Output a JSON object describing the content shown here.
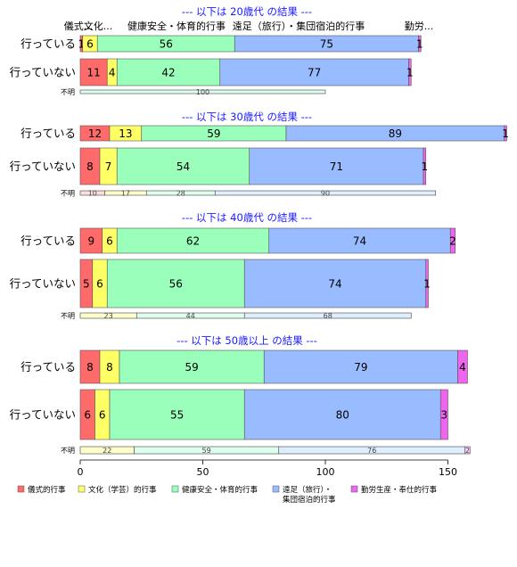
{
  "chart_data": {
    "type": "bar",
    "orientation": "horizontal",
    "stacked": true,
    "xlim": [
      0,
      160
    ],
    "xticks": [
      0,
      50,
      100,
      150
    ],
    "colors": [
      "#ff6b6b",
      "#ffff66",
      "#99ffbb",
      "#99bbff",
      "#ee66ee"
    ],
    "column_headers": [
      "儀式...",
      "文化...",
      "健康安全・体育的行事",
      "遠足（旅行）・集団宿泊的行事",
      "勤労..."
    ],
    "legend": [
      {
        "label": "儀式的行事",
        "color": "#ff6b6b"
      },
      {
        "label": "文化（学芸）的行事",
        "color": "#ffff66"
      },
      {
        "label": "健康安全・体育的行事",
        "color": "#99ffbb"
      },
      {
        "label": "遠足（旅行）・",
        "label2": "集団宿泊的行事",
        "color": "#99bbff"
      },
      {
        "label": "勤労生産・奉仕的行事",
        "color": "#ee66ee"
      }
    ],
    "panels": [
      {
        "title": "--- 以下は 20歳代 の結果 ---",
        "rows": [
          {
            "label": "行っている",
            "values": [
              1,
              6,
              56,
              75,
              1
            ]
          },
          {
            "label": "行っていない",
            "values": [
              11,
              4,
              42,
              77,
              1
            ]
          },
          {
            "label": "不明",
            "values": [
              0,
              0,
              100,
              0,
              0
            ]
          }
        ]
      },
      {
        "title": "--- 以下は 30歳代 の結果 ---",
        "rows": [
          {
            "label": "行っている",
            "values": [
              12,
              13,
              59,
              89,
              1
            ]
          },
          {
            "label": "行っていない",
            "values": [
              8,
              7,
              54,
              71,
              1
            ]
          },
          {
            "label": "不明",
            "values": [
              10,
              17,
              28,
              90,
              0
            ]
          }
        ]
      },
      {
        "title": "--- 以下は 40歳代 の結果 ---",
        "rows": [
          {
            "label": "行っている",
            "values": [
              9,
              6,
              62,
              74,
              2
            ]
          },
          {
            "label": "行っていない",
            "values": [
              5,
              6,
              56,
              74,
              1
            ]
          },
          {
            "label": "不明",
            "values": [
              0,
              23,
              44,
              68,
              0
            ]
          }
        ]
      },
      {
        "title": "--- 以下は 50歳以上 の結果 ---",
        "rows": [
          {
            "label": "行っている",
            "values": [
              8,
              8,
              59,
              79,
              4
            ]
          },
          {
            "label": "行っていない",
            "values": [
              6,
              6,
              55,
              80,
              3
            ]
          },
          {
            "label": "不明",
            "values": [
              0,
              22,
              59,
              76,
              2
            ]
          }
        ]
      }
    ]
  }
}
